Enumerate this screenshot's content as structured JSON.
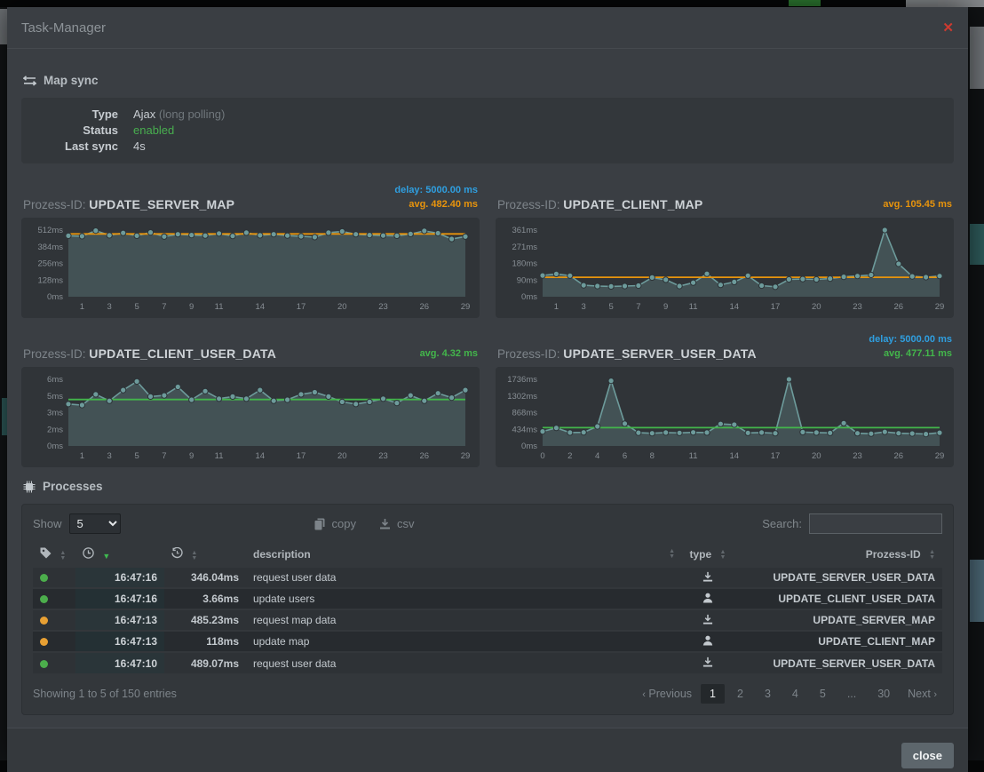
{
  "window": {
    "title": "Task-Manager",
    "close_glyph": "✕"
  },
  "map_sync": {
    "heading": "Map sync",
    "type_label": "Type",
    "type_value": "Ajax",
    "type_suffix": "(long polling)",
    "status_label": "Status",
    "status_value": "enabled",
    "last_sync_label": "Last sync",
    "last_sync_value": "4s"
  },
  "chart_data": [
    {
      "type": "area",
      "title_prefix": "Prozess-ID:",
      "name": "UPDATE_SERVER_MAP",
      "delay_label": "delay: 5000.00 ms",
      "avg_label": "avg. 482.40 ms",
      "avg": 482.4,
      "avg_color": "#e8940c",
      "delay_color": "#2f9fe0",
      "ymax": 512,
      "y_tick_labels": [
        "0ms",
        "128ms",
        "256ms",
        "384ms",
        "512ms"
      ],
      "x_ticks": [
        1,
        3,
        5,
        7,
        9,
        11,
        14,
        17,
        20,
        23,
        26,
        29
      ],
      "values": [
        468,
        465,
        508,
        472,
        490,
        468,
        494,
        462,
        480,
        474,
        470,
        486,
        466,
        492,
        472,
        480,
        470,
        464,
        458,
        492,
        502,
        480,
        474,
        470,
        468,
        482,
        506,
        488,
        444,
        462
      ]
    },
    {
      "type": "area",
      "title_prefix": "Prozess-ID:",
      "name": "UPDATE_CLIENT_MAP",
      "delay_label": null,
      "avg_label": "avg. 105.45 ms",
      "avg": 105.45,
      "avg_color": "#e8940c",
      "delay_color": "#2f9fe0",
      "ymax": 361,
      "y_tick_labels": [
        "0ms",
        "90ms",
        "180ms",
        "271ms",
        "361ms"
      ],
      "x_ticks": [
        1,
        3,
        5,
        7,
        9,
        11,
        14,
        17,
        20,
        23,
        26,
        29
      ],
      "values": [
        115,
        123,
        114,
        62,
        58,
        56,
        58,
        60,
        104,
        92,
        58,
        76,
        124,
        64,
        80,
        114,
        60,
        54,
        94,
        96,
        94,
        98,
        108,
        112,
        118,
        361,
        178,
        110,
        106,
        112
      ]
    },
    {
      "type": "area",
      "title_prefix": "Prozess-ID:",
      "name": "UPDATE_CLIENT_USER_DATA",
      "delay_label": null,
      "avg_label": "avg. 4.32 ms",
      "avg": 4.32,
      "avg_color": "#43b64b",
      "delay_color": "#2f9fe0",
      "ymax": 6.2,
      "y_tick_labels": [
        "0ms",
        "2ms",
        "3ms",
        "5ms",
        "6ms"
      ],
      "x_ticks": [
        1,
        3,
        5,
        7,
        9,
        11,
        14,
        17,
        20,
        23,
        26,
        29
      ],
      "values": [
        3.9,
        3.8,
        4.8,
        4.2,
        5.2,
        6.0,
        4.6,
        4.7,
        5.5,
        4.3,
        5.1,
        4.4,
        4.6,
        4.4,
        5.2,
        4.2,
        4.3,
        4.8,
        5.0,
        4.6,
        4.1,
        3.9,
        4.1,
        4.4,
        4.0,
        4.7,
        4.2,
        4.9,
        4.5,
        5.2
      ]
    },
    {
      "type": "area",
      "title_prefix": "Prozess-ID:",
      "name": "UPDATE_SERVER_USER_DATA",
      "delay_label": "delay: 5000.00 ms",
      "avg_label": "avg. 477.11 ms",
      "avg": 477.11,
      "avg_color": "#43b64b",
      "delay_color": "#2f9fe0",
      "ymax": 1736,
      "y_tick_labels": [
        "0ms",
        "434ms",
        "868ms",
        "1302ms",
        "1736ms"
      ],
      "x_ticks": [
        0,
        2,
        4,
        6,
        8,
        11,
        14,
        17,
        20,
        23,
        26,
        29
      ],
      "values": [
        380,
        470,
        350,
        355,
        510,
        1700,
        580,
        345,
        330,
        350,
        340,
        355,
        350,
        575,
        555,
        340,
        350,
        330,
        1736,
        360,
        350,
        340,
        595,
        330,
        320,
        365,
        330,
        325,
        310,
        345
      ]
    }
  ],
  "processes": {
    "heading": "Processes",
    "show_label": "Show",
    "show_value": "5",
    "copy_label": "copy",
    "csv_label": "csv",
    "search_label": "Search:",
    "search_value": "",
    "columns": {
      "description": "description",
      "type": "type",
      "prozess_id": "Prozess-ID"
    },
    "rows": [
      {
        "status": "green",
        "time": "16:47:16",
        "duration": "346.04ms",
        "duration_color": "green",
        "description": "request user data",
        "type": "server",
        "prozess_id": "UPDATE_SERVER_USER_DATA"
      },
      {
        "status": "green",
        "time": "16:47:16",
        "duration": "3.66ms",
        "duration_color": "green",
        "description": "update users",
        "type": "client",
        "prozess_id": "UPDATE_CLIENT_USER_DATA"
      },
      {
        "status": "orange",
        "time": "16:47:13",
        "duration": "485.23ms",
        "duration_color": "orange",
        "description": "request map data",
        "type": "server",
        "prozess_id": "UPDATE_SERVER_MAP"
      },
      {
        "status": "orange",
        "time": "16:47:13",
        "duration": "118ms",
        "duration_color": "orange",
        "description": "update map",
        "type": "client",
        "prozess_id": "UPDATE_CLIENT_MAP"
      },
      {
        "status": "green",
        "time": "16:47:10",
        "duration": "489.07ms",
        "duration_color": "green",
        "description": "request user data",
        "type": "server",
        "prozess_id": "UPDATE_SERVER_USER_DATA"
      }
    ],
    "info_text": "Showing 1 to 5 of 150 entries",
    "pagination": {
      "prev": "Previous",
      "pages": [
        "1",
        "2",
        "3",
        "4",
        "5",
        "...",
        "30"
      ],
      "active": "1",
      "next": "Next"
    }
  },
  "footer": {
    "close_label": "close"
  },
  "colors": {
    "modal_bg": "#3a3e43",
    "panel_bg": "#33373b",
    "chart_panel_bg": "#303438",
    "line_teal": "#6d9b9b",
    "fill_teal": "rgba(120,162,162,0.28)",
    "avg_orange": "#e8940c",
    "avg_green": "#43b64b",
    "delay_blue": "#2f9fe0",
    "status_green": "#4cae4c",
    "status_orange": "#e8a033",
    "close_x_red": "#ce3a30",
    "enabled_green": "#48ae4f"
  }
}
